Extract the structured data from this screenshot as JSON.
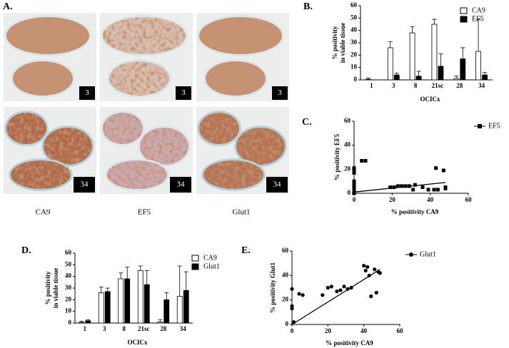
{
  "panel_a": {
    "label": "A.",
    "badges": [
      "3",
      "3",
      "3",
      "34",
      "34",
      "34"
    ],
    "columns": [
      "CA9",
      "EF5",
      "Glut1"
    ]
  },
  "chart_data": [
    {
      "type": "bar",
      "label": "B.",
      "ylabel": [
        "% positivity",
        "in viable tissue"
      ],
      "xlabel": "OCICx",
      "categories": [
        "1",
        "3",
        "8",
        "21sc",
        "28",
        "34"
      ],
      "series": [
        {
          "name": "CA9",
          "color": "#ffffff",
          "values": [
            0.5,
            26,
            38,
            45,
            1,
            23
          ],
          "errors": [
            1,
            5,
            5,
            4,
            2,
            26
          ]
        },
        {
          "name": "EF5",
          "color": "#000000",
          "values": [
            0,
            4,
            3,
            11,
            17,
            4
          ],
          "errors": [
            0,
            1.5,
            4,
            10,
            9,
            2
          ]
        }
      ],
      "ylim": [
        0,
        60
      ],
      "yticks": [
        0,
        10,
        20,
        30,
        40,
        50,
        60
      ],
      "legend": "upper right"
    },
    {
      "type": "scatter",
      "label": "C.",
      "ylabel": "% positivity EF5",
      "xlabel": "% positivity CA9",
      "series": [
        {
          "name": "EF5",
          "color": "#000000",
          "marker": "square",
          "x": [
            0,
            0,
            0,
            0,
            0,
            0,
            0,
            0,
            0,
            4,
            6,
            19,
            21,
            23,
            25,
            27,
            29,
            31,
            32,
            36,
            39,
            42,
            43,
            44,
            47,
            48,
            48
          ],
          "y": [
            21,
            20,
            17,
            10,
            8,
            5,
            3,
            1,
            0,
            27,
            27,
            5,
            5,
            6,
            6,
            6,
            6,
            3,
            7,
            5,
            3,
            3,
            21,
            3,
            19,
            4,
            5
          ]
        }
      ],
      "trendline": {
        "x": [
          0,
          48
        ],
        "y": [
          1,
          9
        ]
      },
      "xlim": [
        0,
        60
      ],
      "xticks": [
        0,
        20,
        40,
        60
      ],
      "ylim": [
        0,
        60
      ],
      "yticks": [
        0,
        20,
        40,
        60
      ],
      "legend": "upper right"
    },
    {
      "type": "bar",
      "label": "D.",
      "ylabel": [
        "% positivity",
        "in viable tissue"
      ],
      "xlabel": "OCICx",
      "categories": [
        "1",
        "3",
        "8",
        "21sc",
        "28",
        "34"
      ],
      "series": [
        {
          "name": "CA9",
          "color": "#ffffff",
          "values": [
            0.5,
            26,
            38,
            45,
            1,
            23
          ],
          "errors": [
            1,
            5,
            5,
            4,
            2,
            26
          ]
        },
        {
          "name": "Glut1",
          "color": "#000000",
          "values": [
            2,
            27,
            38,
            33,
            20,
            28
          ],
          "errors": [
            1,
            3,
            10,
            12,
            6,
            16
          ]
        }
      ],
      "ylim": [
        0,
        60
      ],
      "yticks": [
        0,
        10,
        20,
        30,
        40,
        50,
        60
      ],
      "legend": "upper right"
    },
    {
      "type": "scatter",
      "label": "E.",
      "ylabel": "% positivity Glut1",
      "xlabel": "% positivity CA9",
      "series": [
        {
          "name": "Glut1",
          "color": "#000000",
          "marker": "circle",
          "x": [
            0,
            0,
            0,
            1,
            4,
            6,
            17,
            20,
            22,
            25,
            27,
            29,
            31,
            33,
            40,
            41,
            42,
            43,
            44,
            46,
            47,
            48,
            49
          ],
          "y": [
            29,
            15,
            13,
            2,
            25,
            24,
            24,
            30,
            31,
            27,
            28,
            31,
            29,
            30,
            48,
            44,
            47,
            40,
            23,
            45,
            26,
            43,
            42
          ]
        }
      ],
      "trendline": {
        "x": [
          0,
          49
        ],
        "y": [
          0,
          45
        ]
      },
      "xlim": [
        0,
        60
      ],
      "xticks": [
        0,
        20,
        40,
        60
      ],
      "ylim": [
        0,
        60
      ],
      "yticks": [
        0,
        20,
        40,
        60
      ],
      "legend": "upper right"
    }
  ]
}
